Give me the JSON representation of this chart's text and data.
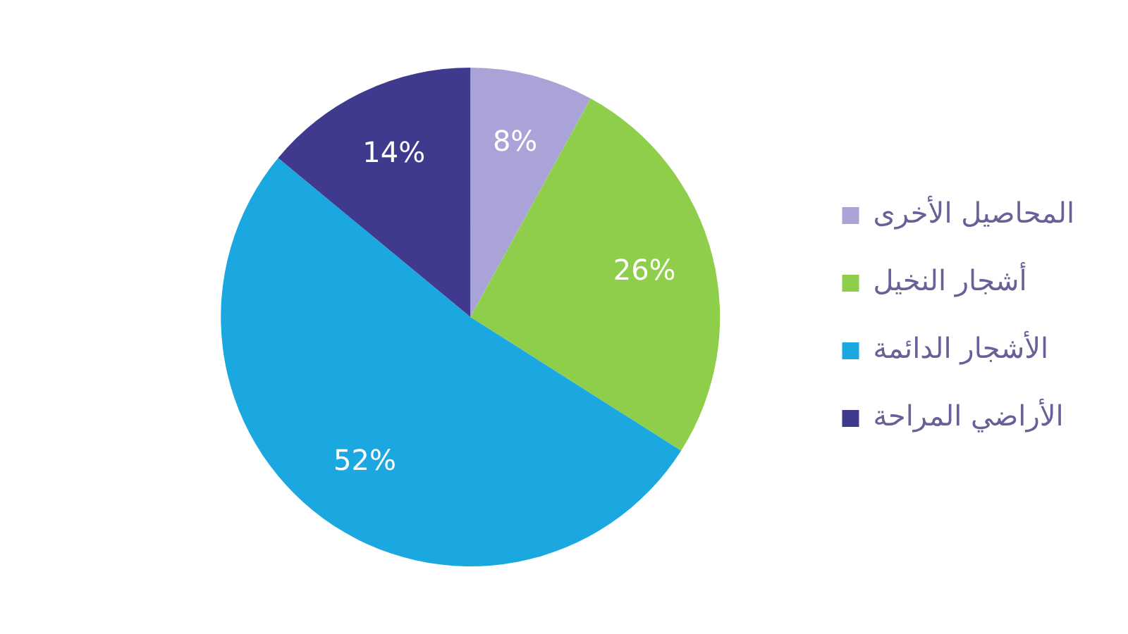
{
  "chart_data": {
    "type": "pie",
    "categories": [
      "المحاصيل الأخرى",
      "أشجار النخيل",
      "الأشجار الدائمة",
      "الأراضي المراحة"
    ],
    "values": [
      8,
      26,
      52,
      14
    ],
    "colors": [
      "#aaa3d8",
      "#8fce4a",
      "#1ba8e0",
      "#3f3a8e"
    ],
    "value_labels": [
      "8%",
      "26%",
      "52%",
      "14%"
    ],
    "legend": "right"
  }
}
